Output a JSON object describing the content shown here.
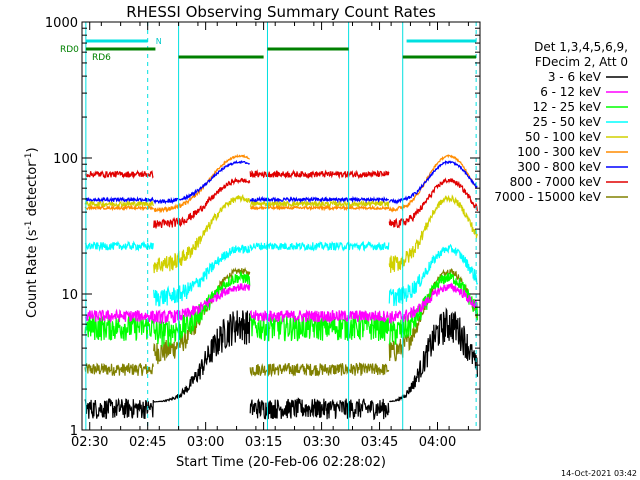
{
  "chart_data": {
    "type": "line",
    "title": "RHESSI Observing Summary Count Rates",
    "xlabel": "Start Time (20-Feb-06 02:28:02)",
    "ylabel_main": "Count Rate (s",
    "ylabel_sup1": "-1",
    "ylabel_mid": " detector",
    "ylabel_sup2": "-1",
    "ylabel_end": ")",
    "yscale": "log",
    "ylim": [
      1,
      1000
    ],
    "xlim_minutes": [
      0,
      103
    ],
    "x_ticks": [
      {
        "t": 2,
        "label": "02:30"
      },
      {
        "t": 17,
        "label": "02:45"
      },
      {
        "t": 32,
        "label": "03:00"
      },
      {
        "t": 47,
        "label": "03:15"
      },
      {
        "t": 62,
        "label": "03:30"
      },
      {
        "t": 77,
        "label": "03:45"
      },
      {
        "t": 92,
        "label": "04:00"
      }
    ],
    "y_ticks": [
      {
        "v": 1,
        "label": "1"
      },
      {
        "v": 10,
        "label": "10"
      },
      {
        "v": 100,
        "label": "100"
      },
      {
        "v": 1000,
        "label": "1000"
      }
    ],
    "legend_header": [
      "Det 1,3,4,5,6,9,",
      "FDecim 2, Att 0"
    ],
    "legend_placement": "right",
    "series": [
      {
        "name": "3 - 6 keV",
        "color": "#000000"
      },
      {
        "name": "6 - 12 keV",
        "color": "#ff00ff"
      },
      {
        "name": "12 - 25 keV",
        "color": "#00ff00"
      },
      {
        "name": "25 - 50 keV",
        "color": "#00ffff"
      },
      {
        "name": "50 - 100 keV",
        "color": "#d0d000"
      },
      {
        "name": "100 - 300 keV",
        "color": "#ff8c00"
      },
      {
        "name": "300 - 800 keV",
        "color": "#0000ff"
      },
      {
        "name": "800 - 7000 keV",
        "color": "#e00000"
      },
      {
        "name": "7000 - 15000 keV",
        "color": "#808000"
      }
    ],
    "night_boundaries_minutes": [
      18.5,
      43.5,
      79.5
    ],
    "saa_boundaries_minutes": [
      1,
      25,
      48,
      69,
      83
    ],
    "flag_labels": {
      "n": "N",
      "rd0": "RD0",
      "rd6": "RD6"
    },
    "flag_n_segments": [
      [
        1,
        17
      ],
      [
        84,
        102
      ]
    ],
    "flag_rd0_segments": [
      [
        1,
        19
      ],
      [
        48,
        69
      ]
    ],
    "flag_rd6_segments": [
      [
        25,
        47
      ],
      [
        83,
        102
      ]
    ]
  },
  "footer": {
    "timestamp": "14-Oct-2021 03:42"
  }
}
